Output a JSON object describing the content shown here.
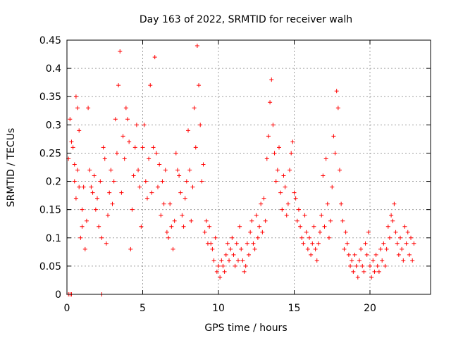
{
  "chart_data": {
    "type": "scatter",
    "title": "Day 163 of 2022, SRMTID for receiver walh",
    "xlabel": "GPS time / hours",
    "ylabel": "SRMTID / TECUs",
    "xlim": [
      0,
      24
    ],
    "ylim": [
      0,
      0.45
    ],
    "x_ticks": [
      0,
      5,
      10,
      15,
      20
    ],
    "y_ticks": [
      0,
      0.05,
      0.1,
      0.15,
      0.2,
      0.25,
      0.3,
      0.35,
      0.4,
      0.45
    ],
    "x_tick_labels": [
      "0",
      "5",
      "10",
      "15",
      "20"
    ],
    "y_tick_labels": [
      "0",
      "0.05",
      "0.1",
      "0.15",
      "0.2",
      "0.25",
      "0.3",
      "0.35",
      "0.4",
      "0.45"
    ],
    "grid": true,
    "marker": "+",
    "color": "#ff0000",
    "series": [
      {
        "name": "SRMTID",
        "points": [
          [
            0.1,
            0.0
          ],
          [
            0.2,
            0.0
          ],
          [
            0.3,
            0.0
          ],
          [
            2.3,
            0.0
          ],
          [
            0.1,
            0.24
          ],
          [
            0.2,
            0.31
          ],
          [
            0.3,
            0.27
          ],
          [
            0.4,
            0.26
          ],
          [
            0.5,
            0.2
          ],
          [
            0.6,
            0.17
          ],
          [
            0.7,
            0.33
          ],
          [
            0.8,
            0.29
          ],
          [
            0.9,
            0.1
          ],
          [
            1.0,
            0.12
          ],
          [
            0.5,
            0.23
          ],
          [
            0.6,
            0.35
          ],
          [
            0.7,
            0.22
          ],
          [
            0.8,
            0.19
          ],
          [
            1.0,
            0.15
          ],
          [
            1.1,
            0.19
          ],
          [
            1.2,
            0.08
          ],
          [
            1.3,
            0.13
          ],
          [
            1.4,
            0.33
          ],
          [
            1.5,
            0.22
          ],
          [
            1.6,
            0.19
          ],
          [
            1.7,
            0.18
          ],
          [
            1.8,
            0.21
          ],
          [
            1.9,
            0.15
          ],
          [
            2.0,
            0.17
          ],
          [
            2.1,
            0.12
          ],
          [
            2.2,
            0.2
          ],
          [
            2.3,
            0.1
          ],
          [
            2.4,
            0.26
          ],
          [
            2.5,
            0.24
          ],
          [
            2.6,
            0.09
          ],
          [
            2.7,
            0.14
          ],
          [
            2.8,
            0.18
          ],
          [
            2.9,
            0.22
          ],
          [
            3.0,
            0.16
          ],
          [
            3.1,
            0.2
          ],
          [
            3.2,
            0.31
          ],
          [
            3.3,
            0.25
          ],
          [
            3.4,
            0.37
          ],
          [
            3.5,
            0.43
          ],
          [
            3.6,
            0.18
          ],
          [
            3.7,
            0.28
          ],
          [
            3.8,
            0.24
          ],
          [
            3.9,
            0.33
          ],
          [
            4.0,
            0.31
          ],
          [
            4.1,
            0.27
          ],
          [
            4.2,
            0.08
          ],
          [
            4.3,
            0.15
          ],
          [
            4.4,
            0.21
          ],
          [
            4.5,
            0.26
          ],
          [
            4.6,
            0.3
          ],
          [
            4.7,
            0.22
          ],
          [
            4.8,
            0.19
          ],
          [
            4.9,
            0.12
          ],
          [
            5.0,
            0.26
          ],
          [
            5.1,
            0.3
          ],
          [
            5.2,
            0.2
          ],
          [
            5.3,
            0.17
          ],
          [
            5.4,
            0.24
          ],
          [
            5.5,
            0.37
          ],
          [
            5.6,
            0.18
          ],
          [
            5.7,
            0.26
          ],
          [
            5.8,
            0.42
          ],
          [
            5.9,
            0.25
          ],
          [
            6.0,
            0.19
          ],
          [
            6.1,
            0.23
          ],
          [
            6.2,
            0.14
          ],
          [
            6.3,
            0.2
          ],
          [
            6.4,
            0.16
          ],
          [
            6.5,
            0.22
          ],
          [
            6.6,
            0.11
          ],
          [
            6.7,
            0.1
          ],
          [
            6.8,
            0.16
          ],
          [
            6.9,
            0.12
          ],
          [
            7.0,
            0.08
          ],
          [
            7.1,
            0.13
          ],
          [
            7.2,
            0.25
          ],
          [
            7.3,
            0.22
          ],
          [
            7.4,
            0.21
          ],
          [
            7.5,
            0.18
          ],
          [
            7.6,
            0.14
          ],
          [
            7.7,
            0.12
          ],
          [
            7.8,
            0.17
          ],
          [
            7.9,
            0.2
          ],
          [
            8.0,
            0.29
          ],
          [
            8.1,
            0.22
          ],
          [
            8.2,
            0.13
          ],
          [
            8.3,
            0.19
          ],
          [
            8.4,
            0.33
          ],
          [
            8.5,
            0.26
          ],
          [
            8.6,
            0.44
          ],
          [
            8.7,
            0.37
          ],
          [
            8.8,
            0.3
          ],
          [
            8.9,
            0.2
          ],
          [
            9.0,
            0.23
          ],
          [
            9.1,
            0.11
          ],
          [
            9.2,
            0.13
          ],
          [
            9.3,
            0.09
          ],
          [
            9.4,
            0.12
          ],
          [
            9.5,
            0.09
          ],
          [
            9.6,
            0.08
          ],
          [
            9.7,
            0.06
          ],
          [
            9.8,
            0.1
          ],
          [
            9.9,
            0.04
          ],
          [
            10.0,
            0.05
          ],
          [
            10.1,
            0.03
          ],
          [
            10.2,
            0.06
          ],
          [
            10.3,
            0.05
          ],
          [
            10.4,
            0.04
          ],
          [
            10.5,
            0.07
          ],
          [
            10.6,
            0.09
          ],
          [
            10.7,
            0.06
          ],
          [
            10.8,
            0.08
          ],
          [
            10.9,
            0.1
          ],
          [
            11.0,
            0.07
          ],
          [
            11.1,
            0.05
          ],
          [
            11.2,
            0.09
          ],
          [
            11.3,
            0.06
          ],
          [
            11.4,
            0.12
          ],
          [
            11.5,
            0.08
          ],
          [
            11.6,
            0.06
          ],
          [
            11.7,
            0.04
          ],
          [
            11.8,
            0.05
          ],
          [
            11.9,
            0.09
          ],
          [
            12.0,
            0.07
          ],
          [
            12.1,
            0.11
          ],
          [
            12.2,
            0.13
          ],
          [
            12.3,
            0.09
          ],
          [
            12.4,
            0.08
          ],
          [
            12.5,
            0.14
          ],
          [
            12.6,
            0.1
          ],
          [
            12.7,
            0.12
          ],
          [
            12.8,
            0.16
          ],
          [
            12.9,
            0.11
          ],
          [
            13.0,
            0.17
          ],
          [
            13.1,
            0.13
          ],
          [
            13.2,
            0.24
          ],
          [
            13.3,
            0.28
          ],
          [
            13.4,
            0.34
          ],
          [
            13.5,
            0.38
          ],
          [
            13.6,
            0.3
          ],
          [
            13.7,
            0.25
          ],
          [
            13.8,
            0.2
          ],
          [
            13.9,
            0.22
          ],
          [
            14.0,
            0.26
          ],
          [
            14.1,
            0.18
          ],
          [
            14.2,
            0.15
          ],
          [
            14.3,
            0.21
          ],
          [
            14.4,
            0.19
          ],
          [
            14.5,
            0.14
          ],
          [
            14.6,
            0.16
          ],
          [
            14.7,
            0.22
          ],
          [
            14.8,
            0.25
          ],
          [
            14.9,
            0.27
          ],
          [
            15.0,
            0.18
          ],
          [
            15.1,
            0.17
          ],
          [
            15.2,
            0.13
          ],
          [
            15.3,
            0.15
          ],
          [
            15.4,
            0.12
          ],
          [
            15.5,
            0.1
          ],
          [
            15.6,
            0.09
          ],
          [
            15.7,
            0.14
          ],
          [
            15.8,
            0.11
          ],
          [
            15.9,
            0.08
          ],
          [
            16.0,
            0.1
          ],
          [
            16.1,
            0.07
          ],
          [
            16.2,
            0.09
          ],
          [
            16.3,
            0.12
          ],
          [
            16.4,
            0.08
          ],
          [
            16.5,
            0.06
          ],
          [
            16.6,
            0.09
          ],
          [
            16.7,
            0.11
          ],
          [
            16.8,
            0.14
          ],
          [
            16.9,
            0.21
          ],
          [
            17.0,
            0.12
          ],
          [
            17.1,
            0.24
          ],
          [
            17.2,
            0.16
          ],
          [
            17.3,
            0.1
          ],
          [
            17.4,
            0.13
          ],
          [
            17.5,
            0.19
          ],
          [
            17.6,
            0.28
          ],
          [
            17.7,
            0.25
          ],
          [
            17.8,
            0.36
          ],
          [
            17.9,
            0.33
          ],
          [
            18.0,
            0.22
          ],
          [
            18.1,
            0.16
          ],
          [
            18.2,
            0.13
          ],
          [
            18.3,
            0.08
          ],
          [
            18.4,
            0.11
          ],
          [
            18.5,
            0.09
          ],
          [
            18.6,
            0.07
          ],
          [
            18.7,
            0.05
          ],
          [
            18.8,
            0.06
          ],
          [
            18.9,
            0.04
          ],
          [
            19.0,
            0.07
          ],
          [
            19.1,
            0.05
          ],
          [
            19.2,
            0.03
          ],
          [
            19.3,
            0.06
          ],
          [
            19.4,
            0.08
          ],
          [
            19.5,
            0.05
          ],
          [
            19.6,
            0.04
          ],
          [
            19.7,
            0.09
          ],
          [
            19.8,
            0.07
          ],
          [
            19.9,
            0.11
          ],
          [
            20.0,
            0.05
          ],
          [
            20.1,
            0.03
          ],
          [
            20.2,
            0.06
          ],
          [
            20.3,
            0.04
          ],
          [
            20.4,
            0.07
          ],
          [
            20.5,
            0.05
          ],
          [
            20.6,
            0.04
          ],
          [
            20.7,
            0.08
          ],
          [
            20.8,
            0.06
          ],
          [
            20.9,
            0.09
          ],
          [
            21.0,
            0.05
          ],
          [
            21.1,
            0.08
          ],
          [
            21.2,
            0.12
          ],
          [
            21.3,
            0.1
          ],
          [
            21.4,
            0.14
          ],
          [
            21.5,
            0.13
          ],
          [
            21.6,
            0.16
          ],
          [
            21.7,
            0.11
          ],
          [
            21.8,
            0.09
          ],
          [
            21.9,
            0.07
          ],
          [
            22.0,
            0.1
          ],
          [
            22.1,
            0.08
          ],
          [
            22.2,
            0.06
          ],
          [
            22.3,
            0.12
          ],
          [
            22.4,
            0.09
          ],
          [
            22.5,
            0.11
          ],
          [
            22.6,
            0.07
          ],
          [
            22.7,
            0.1
          ],
          [
            22.8,
            0.06
          ],
          [
            22.9,
            0.09
          ]
        ]
      }
    ]
  }
}
